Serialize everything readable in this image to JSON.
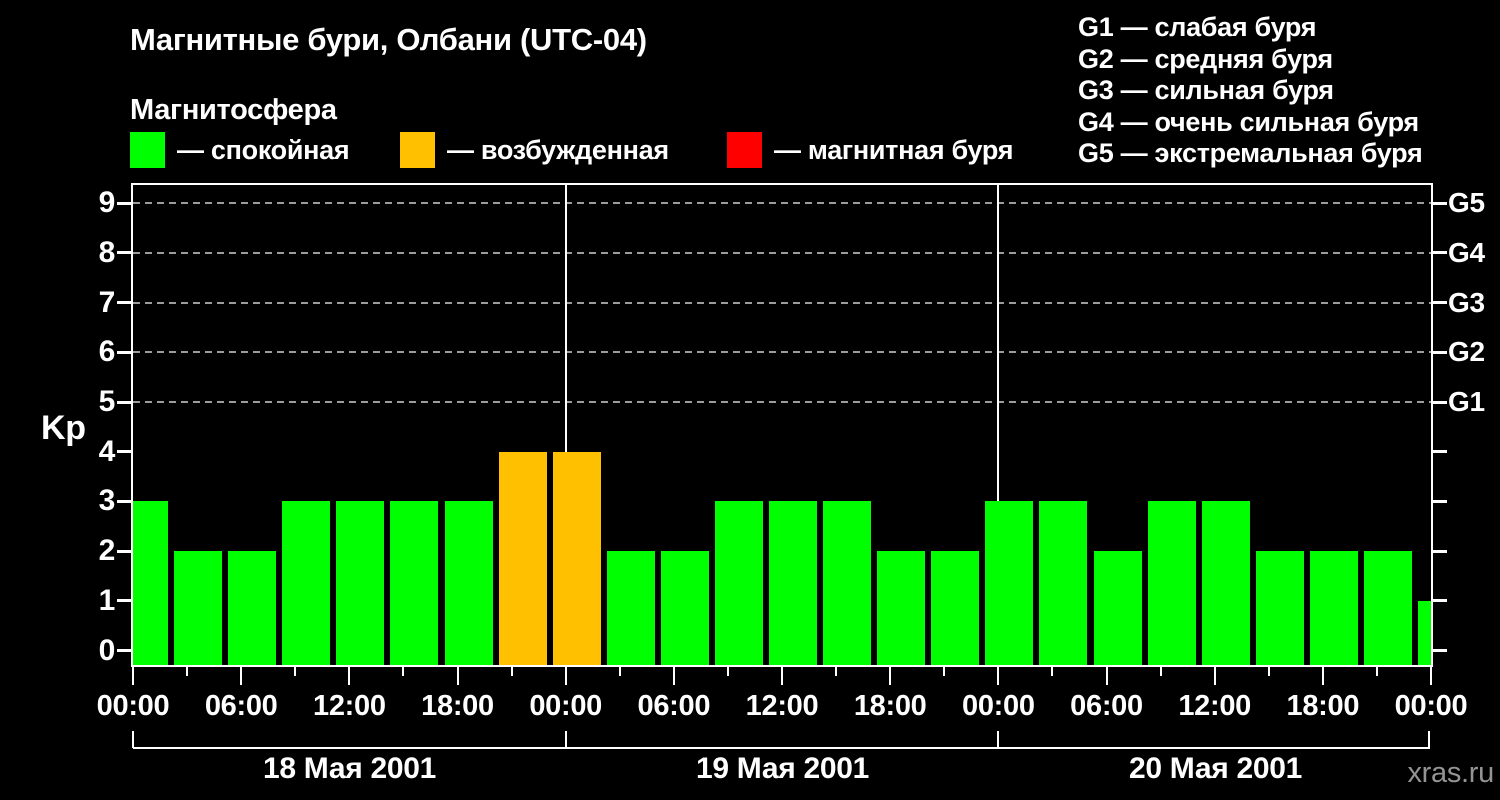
{
  "title": "Магнитные бури, Олбани (UTC-04)",
  "subtitle": "Магнитосфера",
  "legend": {
    "items": [
      {
        "label": "— спокойная",
        "color": "#00ff00",
        "meaning": "quiet"
      },
      {
        "label": "— возбужденная",
        "color": "#ffc000",
        "meaning": "active"
      },
      {
        "label": "— магнитная буря",
        "color": "#ff0000",
        "meaning": "storm"
      }
    ]
  },
  "g_legend": [
    "G1 — слабая буря",
    "G2 — средняя буря",
    "G3 — сильная буря",
    "G4 — очень сильная буря",
    "G5 — экстремальная буря"
  ],
  "watermark": "xras.ru",
  "chart_data": {
    "type": "bar",
    "title": "Магнитные бури, Олбани (UTC-04)",
    "ylabel": "Kp",
    "ylim": [
      -0.3,
      9.4
    ],
    "y_ticks": [
      0,
      1,
      2,
      3,
      4,
      5,
      6,
      7,
      8,
      9
    ],
    "gridlines_at": [
      5,
      6,
      7,
      8,
      9
    ],
    "grid_color": "#9c9c9c",
    "right_axis_labels": [
      {
        "kp": 9,
        "label": "G5"
      },
      {
        "kp": 8,
        "label": "G4"
      },
      {
        "kp": 7,
        "label": "G3"
      },
      {
        "kp": 6,
        "label": "G2"
      },
      {
        "kp": 5,
        "label": "G1"
      }
    ],
    "hour_labels": [
      "00:00",
      "06:00",
      "12:00",
      "18:00",
      "00:00",
      "06:00",
      "12:00",
      "18:00",
      "00:00",
      "06:00",
      "12:00",
      "18:00",
      "00:00"
    ],
    "hours_per_bar": 3,
    "days": [
      {
        "label": "18 Мая 2001",
        "values": [
          3,
          2,
          2,
          3,
          3,
          3,
          3,
          4
        ]
      },
      {
        "label": "19 Мая 2001",
        "values": [
          4,
          2,
          2,
          3,
          3,
          3,
          2,
          2
        ]
      },
      {
        "label": "20 Мая 2001",
        "values": [
          3,
          3,
          2,
          3,
          3,
          2,
          2,
          2
        ]
      }
    ],
    "next_interval_partial_value": 1,
    "bar_colors": {
      "quiet": "#00ff00",
      "active": "#ffc000",
      "storm": "#ff0000"
    },
    "color_rule": "Kp<=3 quiet(green), Kp=4 active(orange), Kp>=5 storm(red)"
  }
}
